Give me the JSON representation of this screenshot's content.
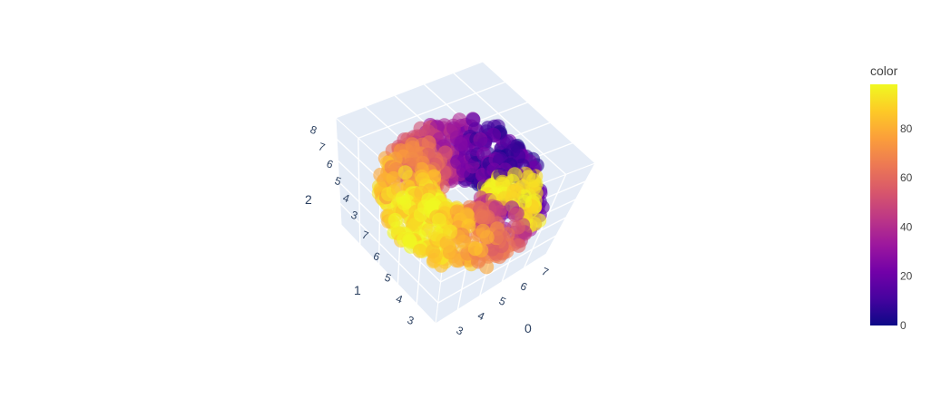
{
  "chart_data": {
    "type": "scatter3d",
    "description_shape": "torus",
    "axes": {
      "x": {
        "title": "0",
        "ticks": [
          "3",
          "4",
          "5",
          "6",
          "7"
        ]
      },
      "y": {
        "title": "1",
        "ticks": [
          "3",
          "4",
          "5",
          "6",
          "7"
        ]
      },
      "z": {
        "title": "2",
        "ticks": [
          "3",
          "4",
          "5",
          "6",
          "7",
          "8"
        ]
      }
    },
    "colorbar": {
      "title": "color",
      "range": [
        0,
        98
      ],
      "ticks": [
        "0",
        "20",
        "40",
        "60",
        "80"
      ],
      "tick_values": [
        0,
        20,
        40,
        60,
        80
      ]
    },
    "colorscale": [
      "#0d0887",
      "#46039f",
      "#7201a8",
      "#9c179e",
      "#bd3786",
      "#d8576b",
      "#ed7953",
      "#fb9f3a",
      "#fdca26",
      "#f0f921"
    ],
    "marker_opacity": 0.6,
    "scene_bgcolor": "#e5ecf6",
    "grid": true
  }
}
